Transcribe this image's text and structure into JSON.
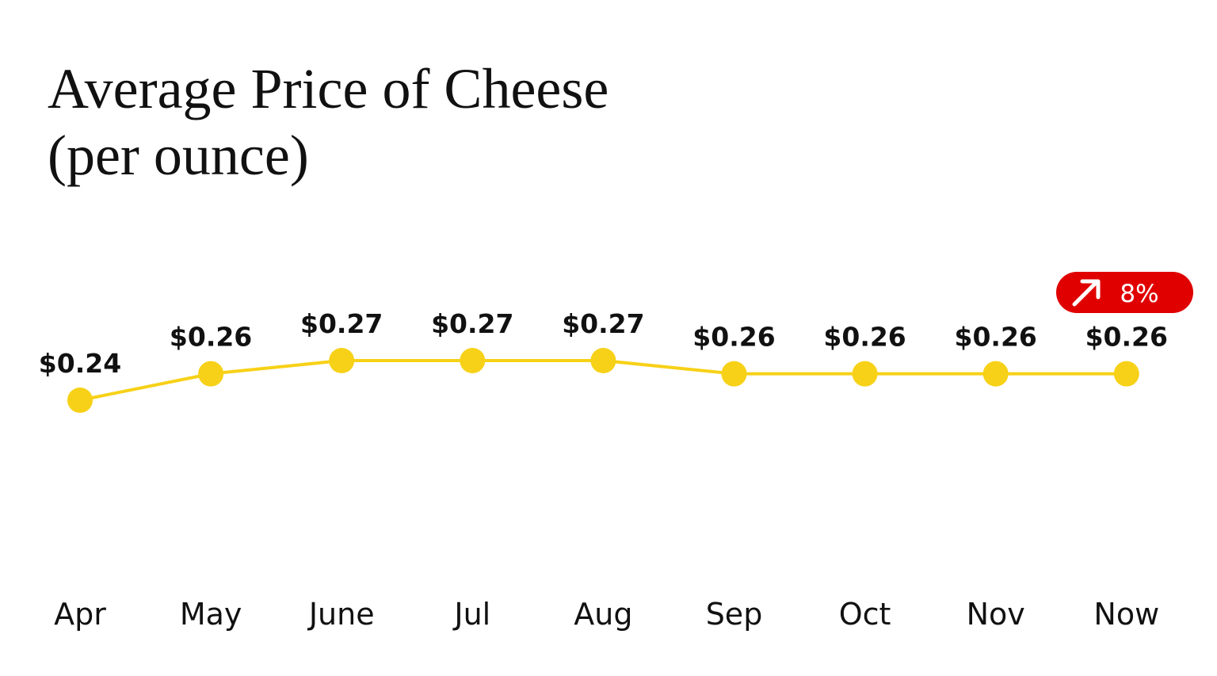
{
  "chart_data": {
    "type": "line",
    "title": "Average Price of Cheese",
    "subtitle": "(per ounce)",
    "categories": [
      "Apr",
      "May",
      "June",
      "Jul",
      "Aug",
      "Sep",
      "Oct",
      "Nov",
      "Now"
    ],
    "values": [
      0.24,
      0.26,
      0.27,
      0.27,
      0.27,
      0.26,
      0.26,
      0.26,
      0.26
    ],
    "value_labels": [
      "$0.24",
      "$0.26",
      "$0.27",
      "$0.27",
      "$0.27",
      "$0.26",
      "$0.26",
      "$0.26",
      "$0.26"
    ],
    "color": "#f7d117",
    "annotation": "8%",
    "annotation_color": "#e00000"
  }
}
